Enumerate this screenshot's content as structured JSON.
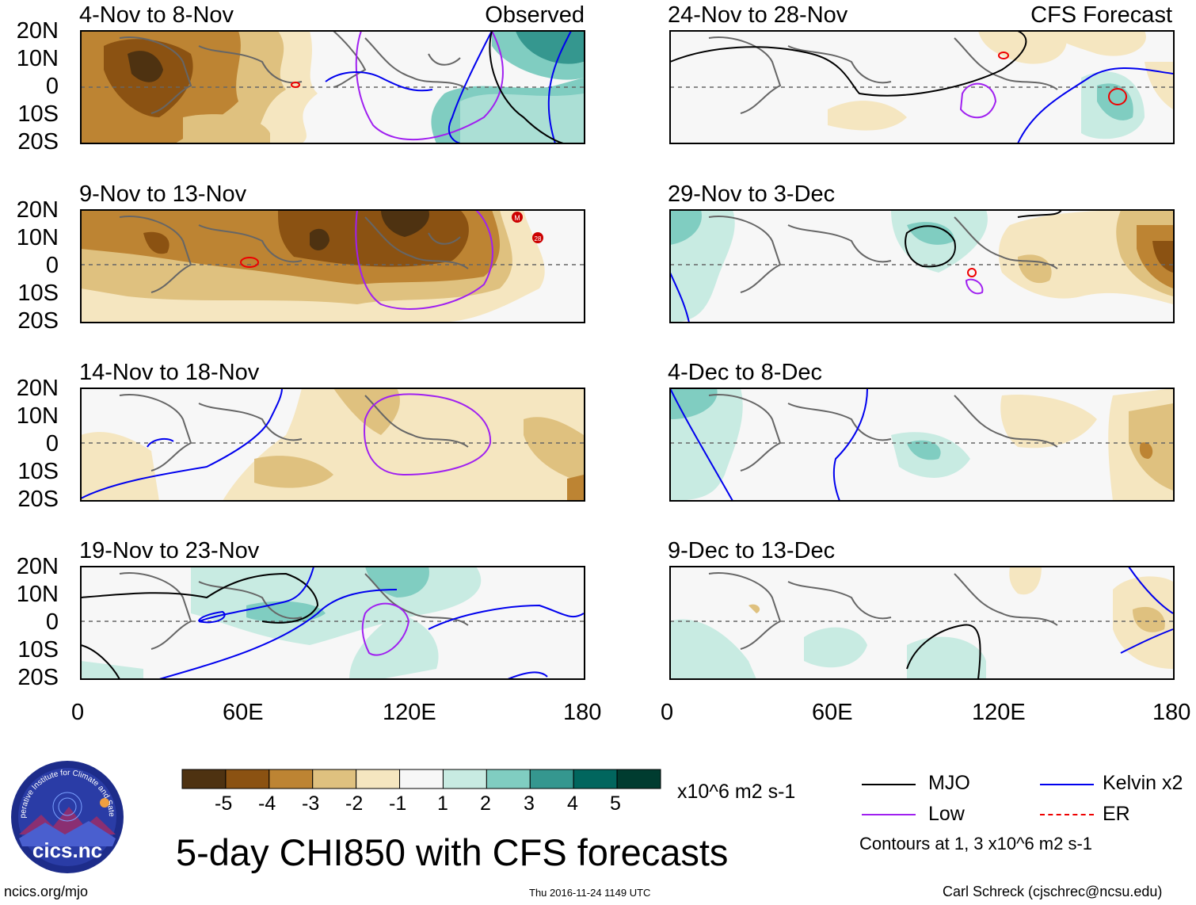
{
  "observed_label": "Observed",
  "forecast_label": "CFS Forecast",
  "lat_labels": [
    "20N",
    "10N",
    "0",
    "10S",
    "20S"
  ],
  "lon_labels": [
    "0",
    "60E",
    "120E",
    "180"
  ],
  "panels_left": [
    {
      "title": "4-Nov to 8-Nov"
    },
    {
      "title": "9-Nov to 13-Nov"
    },
    {
      "title": "14-Nov to 18-Nov"
    },
    {
      "title": "19-Nov to 23-Nov"
    }
  ],
  "panels_right": [
    {
      "title": "24-Nov to 28-Nov"
    },
    {
      "title": "29-Nov to 3-Dec"
    },
    {
      "title": "4-Dec to 8-Dec"
    },
    {
      "title": "9-Dec to 13-Dec"
    }
  ],
  "colorbar": {
    "colors": [
      "#4e3211",
      "#8b5212",
      "#bd8433",
      "#dfc17f",
      "#f5e6c0",
      "#f7f7f7",
      "#c8ebe2",
      "#80cdc1",
      "#35978f",
      "#01665e",
      "#003c30"
    ],
    "ticks": [
      "-5",
      "-4",
      "-3",
      "-2",
      "-1",
      "1",
      "2",
      "3",
      "4",
      "5"
    ],
    "units": "x10^6 m2 s-1"
  },
  "legend": {
    "items": [
      {
        "label": "MJO",
        "color": "#000000"
      },
      {
        "label": "Kelvin x2",
        "color": "#0000ee"
      },
      {
        "label": "Low",
        "color": "#a020f0"
      },
      {
        "label": "ER",
        "color": "#ee0000"
      }
    ],
    "note": "Contours at 1, 3 x10^6 m2 s-1"
  },
  "storm_markers": [
    "M",
    "28"
  ],
  "logo_text": "cics.nc",
  "logo_ring_text": "Cooperative Institute for Climate and Satellites",
  "main_title": "5-day CHI850 with CFS forecasts",
  "footer": {
    "left": "ncics.org/mjo",
    "center": "Thu 2016-11-24 1149 UTC",
    "right": "Carl Schreck (cjschrec@ncsu.edu)"
  }
}
